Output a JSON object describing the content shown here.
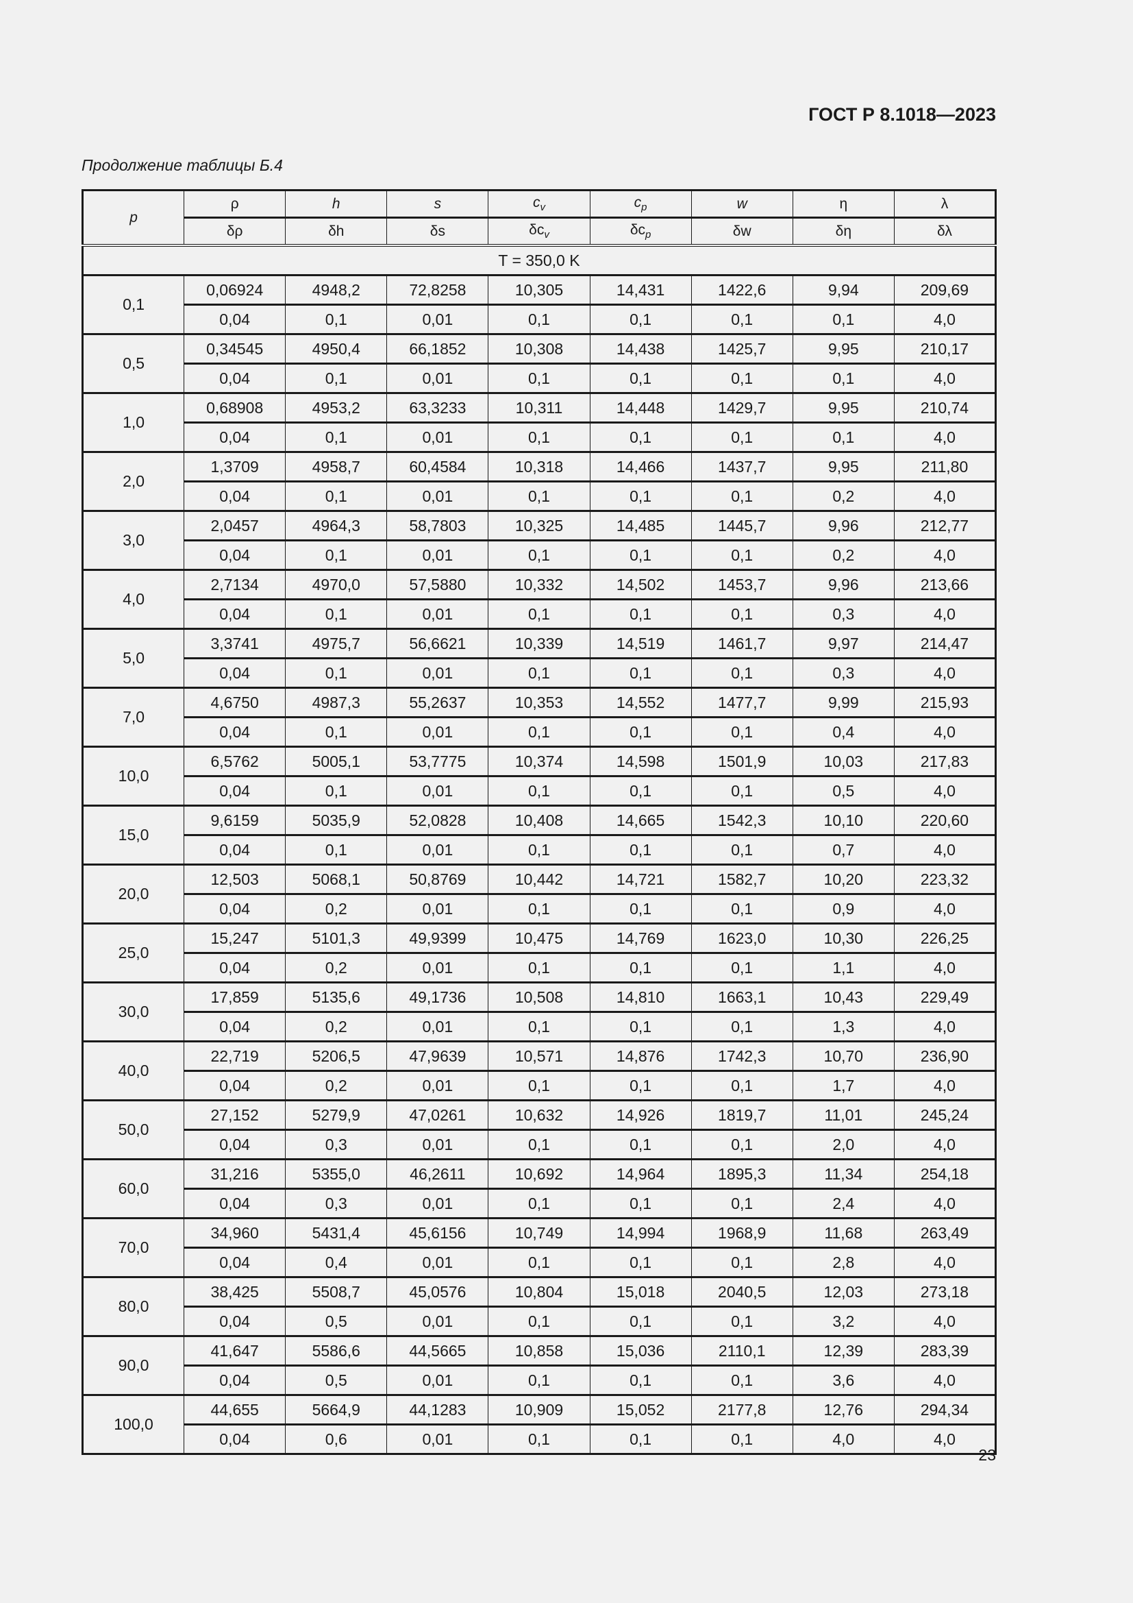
{
  "header": {
    "doc_code": "ГОСТ Р 8.1018—2023",
    "caption": "Продолжение таблицы Б.4"
  },
  "table": {
    "p_label": "p",
    "columns": [
      {
        "sym": "ρ",
        "sub": "",
        "delta": "δρ"
      },
      {
        "sym": "h",
        "sub": "",
        "delta": "δh"
      },
      {
        "sym": "s",
        "sub": "",
        "delta": "δs"
      },
      {
        "sym": "c",
        "sub": "v",
        "delta": "δc"
      },
      {
        "sym": "c",
        "sub": "p",
        "delta": "δc"
      },
      {
        "sym": "w",
        "sub": "",
        "delta": "δw"
      },
      {
        "sym": "η",
        "sub": "",
        "delta": "δη"
      },
      {
        "sym": "λ",
        "sub": "",
        "delta": "δλ"
      }
    ],
    "section_label": "T = 350,0 K",
    "rows": [
      {
        "p": "0,1",
        "values": [
          "0,06924",
          "4948,2",
          "72,8258",
          "10,305",
          "14,431",
          "1422,6",
          "9,94",
          "209,69"
        ],
        "deltas": [
          "0,04",
          "0,1",
          "0,01",
          "0,1",
          "0,1",
          "0,1",
          "0,1",
          "4,0"
        ]
      },
      {
        "p": "0,5",
        "values": [
          "0,34545",
          "4950,4",
          "66,1852",
          "10,308",
          "14,438",
          "1425,7",
          "9,95",
          "210,17"
        ],
        "deltas": [
          "0,04",
          "0,1",
          "0,01",
          "0,1",
          "0,1",
          "0,1",
          "0,1",
          "4,0"
        ]
      },
      {
        "p": "1,0",
        "values": [
          "0,68908",
          "4953,2",
          "63,3233",
          "10,311",
          "14,448",
          "1429,7",
          "9,95",
          "210,74"
        ],
        "deltas": [
          "0,04",
          "0,1",
          "0,01",
          "0,1",
          "0,1",
          "0,1",
          "0,1",
          "4,0"
        ]
      },
      {
        "p": "2,0",
        "values": [
          "1,3709",
          "4958,7",
          "60,4584",
          "10,318",
          "14,466",
          "1437,7",
          "9,95",
          "211,80"
        ],
        "deltas": [
          "0,04",
          "0,1",
          "0,01",
          "0,1",
          "0,1",
          "0,1",
          "0,2",
          "4,0"
        ]
      },
      {
        "p": "3,0",
        "values": [
          "2,0457",
          "4964,3",
          "58,7803",
          "10,325",
          "14,485",
          "1445,7",
          "9,96",
          "212,77"
        ],
        "deltas": [
          "0,04",
          "0,1",
          "0,01",
          "0,1",
          "0,1",
          "0,1",
          "0,2",
          "4,0"
        ]
      },
      {
        "p": "4,0",
        "values": [
          "2,7134",
          "4970,0",
          "57,5880",
          "10,332",
          "14,502",
          "1453,7",
          "9,96",
          "213,66"
        ],
        "deltas": [
          "0,04",
          "0,1",
          "0,01",
          "0,1",
          "0,1",
          "0,1",
          "0,3",
          "4,0"
        ]
      },
      {
        "p": "5,0",
        "values": [
          "3,3741",
          "4975,7",
          "56,6621",
          "10,339",
          "14,519",
          "1461,7",
          "9,97",
          "214,47"
        ],
        "deltas": [
          "0,04",
          "0,1",
          "0,01",
          "0,1",
          "0,1",
          "0,1",
          "0,3",
          "4,0"
        ]
      },
      {
        "p": "7,0",
        "values": [
          "4,6750",
          "4987,3",
          "55,2637",
          "10,353",
          "14,552",
          "1477,7",
          "9,99",
          "215,93"
        ],
        "deltas": [
          "0,04",
          "0,1",
          "0,01",
          "0,1",
          "0,1",
          "0,1",
          "0,4",
          "4,0"
        ]
      },
      {
        "p": "10,0",
        "values": [
          "6,5762",
          "5005,1",
          "53,7775",
          "10,374",
          "14,598",
          "1501,9",
          "10,03",
          "217,83"
        ],
        "deltas": [
          "0,04",
          "0,1",
          "0,01",
          "0,1",
          "0,1",
          "0,1",
          "0,5",
          "4,0"
        ]
      },
      {
        "p": "15,0",
        "values": [
          "9,6159",
          "5035,9",
          "52,0828",
          "10,408",
          "14,665",
          "1542,3",
          "10,10",
          "220,60"
        ],
        "deltas": [
          "0,04",
          "0,1",
          "0,01",
          "0,1",
          "0,1",
          "0,1",
          "0,7",
          "4,0"
        ]
      },
      {
        "p": "20,0",
        "values": [
          "12,503",
          "5068,1",
          "50,8769",
          "10,442",
          "14,721",
          "1582,7",
          "10,20",
          "223,32"
        ],
        "deltas": [
          "0,04",
          "0,2",
          "0,01",
          "0,1",
          "0,1",
          "0,1",
          "0,9",
          "4,0"
        ]
      },
      {
        "p": "25,0",
        "values": [
          "15,247",
          "5101,3",
          "49,9399",
          "10,475",
          "14,769",
          "1623,0",
          "10,30",
          "226,25"
        ],
        "deltas": [
          "0,04",
          "0,2",
          "0,01",
          "0,1",
          "0,1",
          "0,1",
          "1,1",
          "4,0"
        ]
      },
      {
        "p": "30,0",
        "values": [
          "17,859",
          "5135,6",
          "49,1736",
          "10,508",
          "14,810",
          "1663,1",
          "10,43",
          "229,49"
        ],
        "deltas": [
          "0,04",
          "0,2",
          "0,01",
          "0,1",
          "0,1",
          "0,1",
          "1,3",
          "4,0"
        ]
      },
      {
        "p": "40,0",
        "values": [
          "22,719",
          "5206,5",
          "47,9639",
          "10,571",
          "14,876",
          "1742,3",
          "10,70",
          "236,90"
        ],
        "deltas": [
          "0,04",
          "0,2",
          "0,01",
          "0,1",
          "0,1",
          "0,1",
          "1,7",
          "4,0"
        ]
      },
      {
        "p": "50,0",
        "values": [
          "27,152",
          "5279,9",
          "47,0261",
          "10,632",
          "14,926",
          "1819,7",
          "11,01",
          "245,24"
        ],
        "deltas": [
          "0,04",
          "0,3",
          "0,01",
          "0,1",
          "0,1",
          "0,1",
          "2,0",
          "4,0"
        ]
      },
      {
        "p": "60,0",
        "values": [
          "31,216",
          "5355,0",
          "46,2611",
          "10,692",
          "14,964",
          "1895,3",
          "11,34",
          "254,18"
        ],
        "deltas": [
          "0,04",
          "0,3",
          "0,01",
          "0,1",
          "0,1",
          "0,1",
          "2,4",
          "4,0"
        ]
      },
      {
        "p": "70,0",
        "values": [
          "34,960",
          "5431,4",
          "45,6156",
          "10,749",
          "14,994",
          "1968,9",
          "11,68",
          "263,49"
        ],
        "deltas": [
          "0,04",
          "0,4",
          "0,01",
          "0,1",
          "0,1",
          "0,1",
          "2,8",
          "4,0"
        ]
      },
      {
        "p": "80,0",
        "values": [
          "38,425",
          "5508,7",
          "45,0576",
          "10,804",
          "15,018",
          "2040,5",
          "12,03",
          "273,18"
        ],
        "deltas": [
          "0,04",
          "0,5",
          "0,01",
          "0,1",
          "0,1",
          "0,1",
          "3,2",
          "4,0"
        ]
      },
      {
        "p": "90,0",
        "values": [
          "41,647",
          "5586,6",
          "44,5665",
          "10,858",
          "15,036",
          "2110,1",
          "12,39",
          "283,39"
        ],
        "deltas": [
          "0,04",
          "0,5",
          "0,01",
          "0,1",
          "0,1",
          "0,1",
          "3,6",
          "4,0"
        ]
      },
      {
        "p": "100,0",
        "values": [
          "44,655",
          "5664,9",
          "44,1283",
          "10,909",
          "15,052",
          "2177,8",
          "12,76",
          "294,34"
        ],
        "deltas": [
          "0,04",
          "0,6",
          "0,01",
          "0,1",
          "0,1",
          "0,1",
          "4,0",
          "4,0"
        ]
      }
    ]
  },
  "footer": {
    "page_number": "23"
  }
}
